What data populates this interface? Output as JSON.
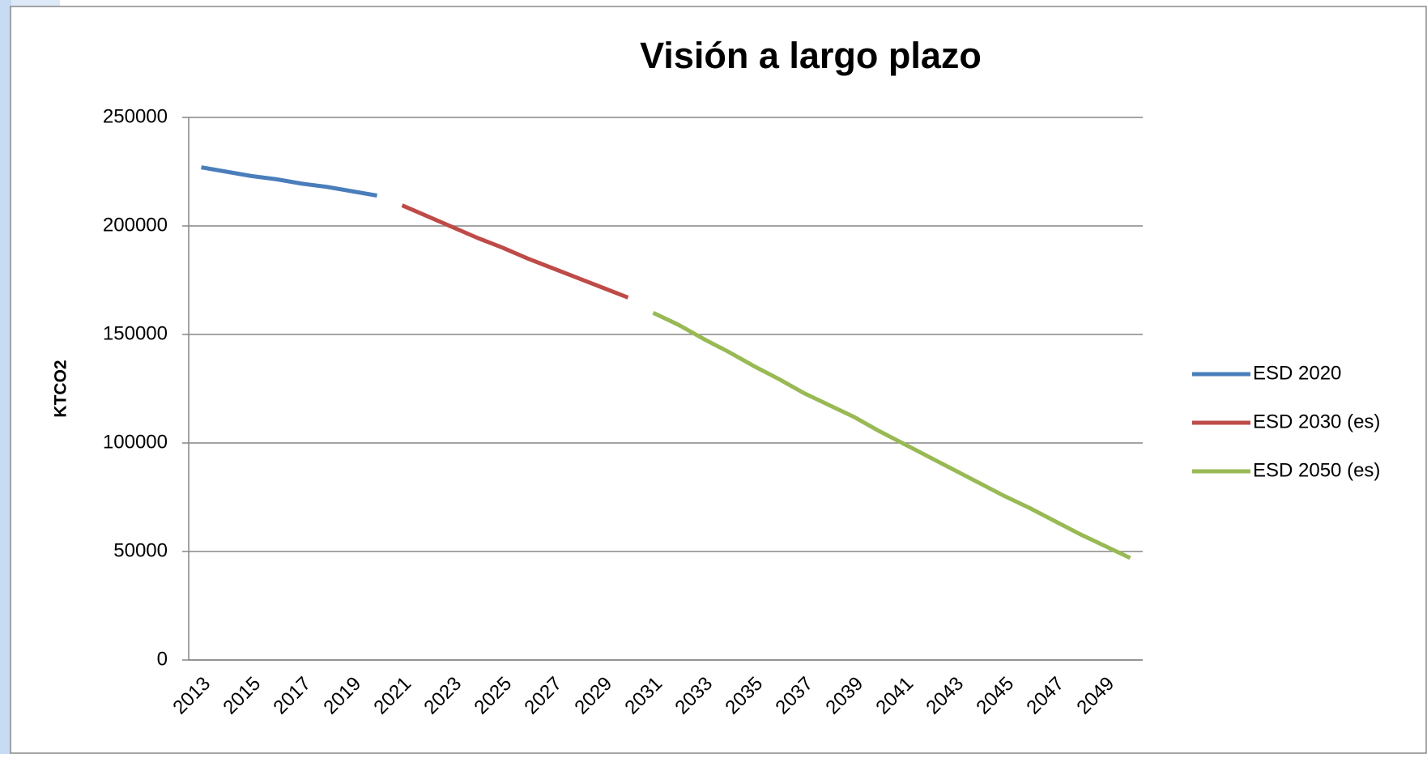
{
  "chart_data": {
    "type": "line",
    "title": "Visión a largo plazo",
    "y_label": "KTCO2",
    "categories": [
      "2013",
      null,
      "2015",
      null,
      "2017",
      null,
      "2019",
      null,
      "2021",
      null,
      "2023",
      null,
      "2025",
      null,
      "2027",
      null,
      "2029",
      null,
      "2031",
      null,
      "2033",
      null,
      "2035",
      null,
      "2037",
      null,
      "2039",
      null,
      "2041",
      null,
      "2043",
      null,
      "2045",
      null,
      "2047",
      null,
      "2049",
      null
    ],
    "series": [
      {
        "name": "ESD 2020",
        "color": "#4a7ebb",
        "values": [
          227000,
          225000,
          223000,
          221500,
          219500,
          218000,
          216000,
          214000,
          null,
          null,
          null,
          null,
          null,
          null,
          null,
          null,
          null,
          null,
          null,
          null,
          null,
          null,
          null,
          null,
          null,
          null,
          null,
          null,
          null,
          null,
          null,
          null,
          null,
          null,
          null,
          null,
          null,
          null
        ]
      },
      {
        "name": "ESD 2030 (es)",
        "color": "#be4b48",
        "values": [
          null,
          null,
          null,
          null,
          null,
          null,
          null,
          null,
          209500,
          204500,
          199500,
          194500,
          190000,
          185000,
          180500,
          176000,
          171500,
          167000,
          null,
          null,
          null,
          null,
          null,
          null,
          null,
          null,
          null,
          null,
          null,
          null,
          null,
          null,
          null,
          null,
          null,
          null,
          null,
          null
        ]
      },
      {
        "name": "ESD 2050 (es)",
        "color": "#98b954",
        "values": [
          null,
          null,
          null,
          null,
          null,
          null,
          null,
          null,
          null,
          null,
          null,
          null,
          null,
          null,
          null,
          null,
          null,
          null,
          160000,
          154500,
          148000,
          142000,
          135500,
          129500,
          123000,
          117500,
          112000,
          105500,
          99500,
          93500,
          87500,
          81500,
          75500,
          70000,
          64000,
          58000,
          52500,
          47000
        ]
      }
    ],
    "ylim": [
      0,
      250000
    ],
    "yticks": [
      0,
      50000,
      100000,
      150000,
      200000,
      250000
    ],
    "grid": true,
    "legend": "right"
  }
}
